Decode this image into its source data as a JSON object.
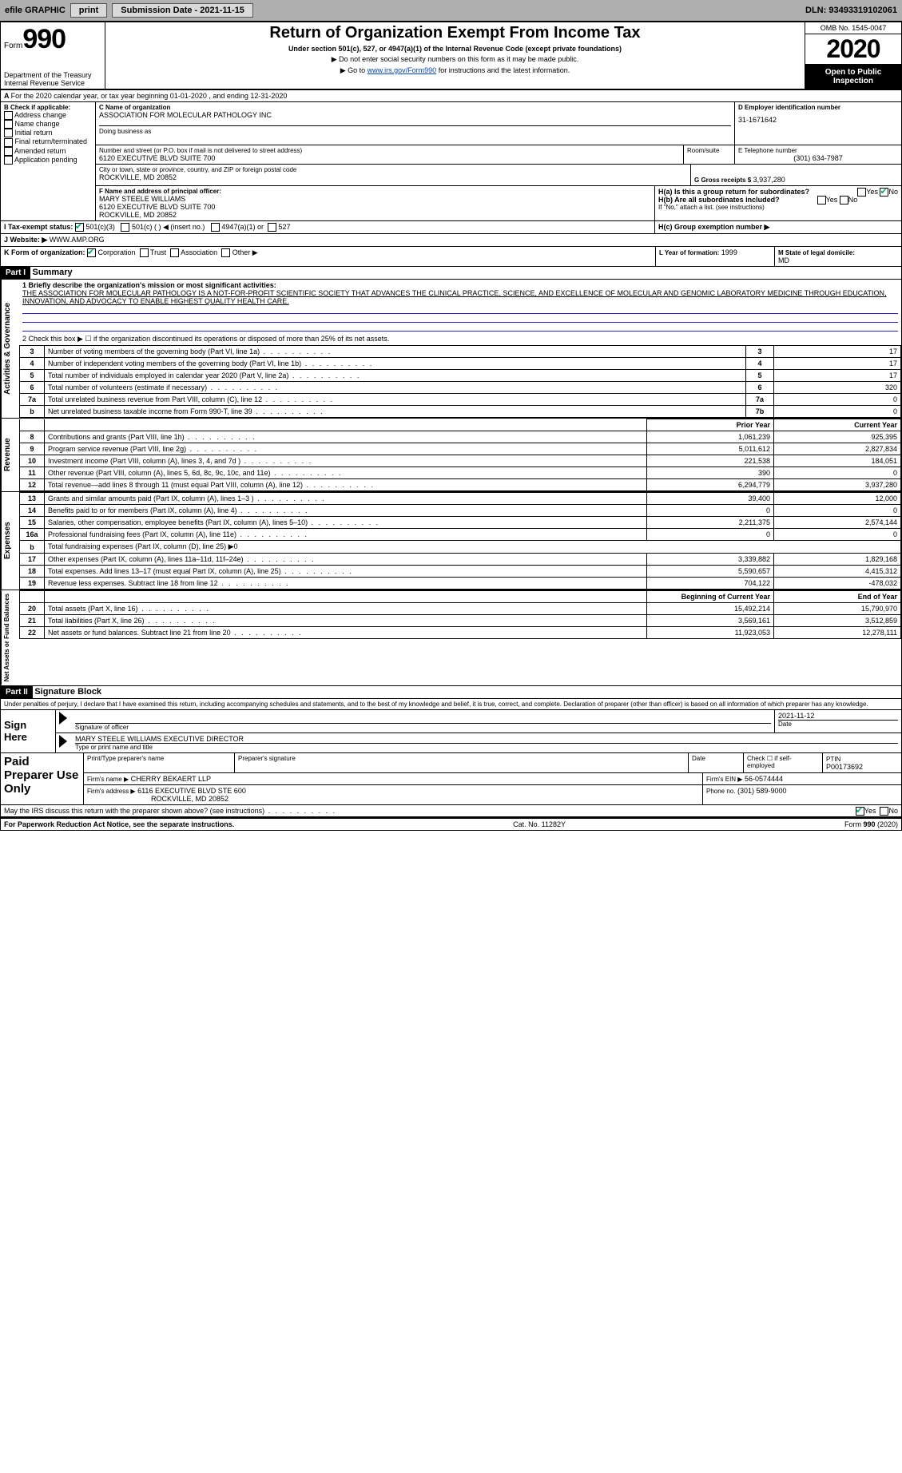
{
  "topbar": {
    "efile": "efile GRAPHIC",
    "print": "print",
    "sub_lbl": "Submission Date - 2021-11-15",
    "dln": "DLN: 93493319102061"
  },
  "header": {
    "form_word": "Form",
    "form_no": "990",
    "dept": "Department of the Treasury\nInternal Revenue Service",
    "title": "Return of Organization Exempt From Income Tax",
    "sub1": "Under section 501(c), 527, or 4947(a)(1) of the Internal Revenue Code (except private foundations)",
    "sub2": "▶ Do not enter social security numbers on this form as it may be made public.",
    "sub3_pre": "▶ Go to ",
    "sub3_link": "www.irs.gov/Form990",
    "sub3_post": " for instructions and the latest information.",
    "omb": "OMB No. 1545-0047",
    "year": "2020",
    "inspect": "Open to Public Inspection"
  },
  "A": {
    "text": "For the 2020 calendar year, or tax year beginning 01-01-2020    , and ending 12-31-2020"
  },
  "B": {
    "label": "B Check if applicable:",
    "items": [
      "Address change",
      "Name change",
      "Initial return",
      "Final return/terminated",
      "Amended return",
      "Application pending"
    ]
  },
  "C": {
    "name_lbl": "C Name of organization",
    "name": "ASSOCIATION FOR MOLECULAR PATHOLOGY INC",
    "dba_lbl": "Doing business as",
    "addr_lbl": "Number and street (or P.O. box if mail is not delivered to street address)",
    "room_lbl": "Room/suite",
    "addr": "6120 EXECUTIVE BLVD SUITE 700",
    "city_lbl": "City or town, state or province, country, and ZIP or foreign postal code",
    "city": "ROCKVILLE, MD  20852"
  },
  "D": {
    "lbl": "D Employer identification number",
    "val": "31-1671642"
  },
  "E": {
    "lbl": "E Telephone number",
    "val": "(301) 634-7987"
  },
  "G": {
    "lbl": "G Gross receipts $",
    "val": "3,937,280"
  },
  "F": {
    "lbl": "F  Name and address of principal officer:",
    "name": "MARY STEELE WILLIAMS",
    "addr1": "6120 EXECUTIVE BLVD SUITE 700",
    "addr2": "ROCKVILLE, MD  20852"
  },
  "H": {
    "a": "H(a)  Is this a group return for subordinates?",
    "b": "H(b)  Are all subordinates included?",
    "bnote": "If \"No,\" attach a list. (see instructions)",
    "c": "H(c)  Group exemption number ▶",
    "yes": "Yes",
    "no": "No"
  },
  "I": {
    "lbl": "I   Tax-exempt status:",
    "o1": "501(c)(3)",
    "o2": "501(c) (  ) ◀ (insert no.)",
    "o3": "4947(a)(1) or",
    "o4": "527"
  },
  "J": {
    "lbl": "J   Website: ▶",
    "val": "WWW.AMP.ORG"
  },
  "K": {
    "lbl": "K Form of organization:",
    "o1": "Corporation",
    "o2": "Trust",
    "o3": "Association",
    "o4": "Other ▶"
  },
  "L": {
    "lbl": "L Year of formation:",
    "val": "1999"
  },
  "M": {
    "lbl": "M State of legal domicile:",
    "val": "MD"
  },
  "part1": {
    "tag": "Part I",
    "title": "Summary",
    "q1": "1  Briefly describe the organization's mission or most significant activities:",
    "mission": "THE ASSOCIATION FOR MOLECULAR PATHOLOGY IS A NOT-FOR-PROFIT SCIENTIFIC SOCIETY THAT ADVANCES THE CLINICAL PRACTICE, SCIENCE, AND EXCELLENCE OF MOLECULAR AND GENOMIC LABORATORY MEDICINE THROUGH EDUCATION, INNOVATION, AND ADVOCACY TO ENABLE HIGHEST QUALITY HEALTH CARE.",
    "q2": "2   Check this box ▶ ☐ if the organization discontinued its operations or disposed of more than 25% of its net assets.",
    "lines": [
      {
        "n": "3",
        "d": "Number of voting members of the governing body (Part VI, line 1a)",
        "box": "3",
        "v": "17"
      },
      {
        "n": "4",
        "d": "Number of independent voting members of the governing body (Part VI, line 1b)",
        "box": "4",
        "v": "17"
      },
      {
        "n": "5",
        "d": "Total number of individuals employed in calendar year 2020 (Part V, line 2a)",
        "box": "5",
        "v": "17"
      },
      {
        "n": "6",
        "d": "Total number of volunteers (estimate if necessary)",
        "box": "6",
        "v": "320"
      },
      {
        "n": "7a",
        "d": "Total unrelated business revenue from Part VIII, column (C), line 12",
        "box": "7a",
        "v": "0"
      },
      {
        "n": "b",
        "d": "Net unrelated business taxable income from Form 990-T, line 39",
        "box": "7b",
        "v": "0"
      }
    ],
    "col_prior": "Prior Year",
    "col_curr": "Current Year",
    "rev": [
      {
        "n": "8",
        "d": "Contributions and grants (Part VIII, line 1h)",
        "p": "1,061,239",
        "c": "925,395"
      },
      {
        "n": "9",
        "d": "Program service revenue (Part VIII, line 2g)",
        "p": "5,011,612",
        "c": "2,827,834"
      },
      {
        "n": "10",
        "d": "Investment income (Part VIII, column (A), lines 3, 4, and 7d )",
        "p": "221,538",
        "c": "184,051"
      },
      {
        "n": "11",
        "d": "Other revenue (Part VIII, column (A), lines 5, 6d, 8c, 9c, 10c, and 11e)",
        "p": "390",
        "c": "0"
      },
      {
        "n": "12",
        "d": "Total revenue—add lines 8 through 11 (must equal Part VIII, column (A), line 12)",
        "p": "6,294,779",
        "c": "3,937,280"
      }
    ],
    "exp": [
      {
        "n": "13",
        "d": "Grants and similar amounts paid (Part IX, column (A), lines 1–3 )",
        "p": "39,400",
        "c": "12,000"
      },
      {
        "n": "14",
        "d": "Benefits paid to or for members (Part IX, column (A), line 4)",
        "p": "0",
        "c": "0"
      },
      {
        "n": "15",
        "d": "Salaries, other compensation, employee benefits (Part IX, column (A), lines 5–10)",
        "p": "2,211,375",
        "c": "2,574,144"
      },
      {
        "n": "16a",
        "d": "Professional fundraising fees (Part IX, column (A), line 11e)",
        "p": "0",
        "c": "0"
      },
      {
        "n": "b",
        "d": "Total fundraising expenses (Part IX, column (D), line 25) ▶0",
        "p": "",
        "c": ""
      },
      {
        "n": "17",
        "d": "Other expenses (Part IX, column (A), lines 11a–11d, 11f–24e)",
        "p": "3,339,882",
        "c": "1,829,168"
      },
      {
        "n": "18",
        "d": "Total expenses. Add lines 13–17 (must equal Part IX, column (A), line 25)",
        "p": "5,590,657",
        "c": "4,415,312"
      },
      {
        "n": "19",
        "d": "Revenue less expenses. Subtract line 18 from line 12",
        "p": "704,122",
        "c": "-478,032"
      }
    ],
    "col_beg": "Beginning of Current Year",
    "col_end": "End of Year",
    "net": [
      {
        "n": "20",
        "d": "Total assets (Part X, line 16)",
        "p": "15,492,214",
        "c": "15,790,970"
      },
      {
        "n": "21",
        "d": "Total liabilities (Part X, line 26)",
        "p": "3,569,161",
        "c": "3,512,859"
      },
      {
        "n": "22",
        "d": "Net assets or fund balances. Subtract line 21 from line 20",
        "p": "11,923,053",
        "c": "12,278,111"
      }
    ],
    "side_ag": "Activities & Governance",
    "side_rev": "Revenue",
    "side_exp": "Expenses",
    "side_net": "Net Assets or Fund Balances"
  },
  "part2": {
    "tag": "Part II",
    "title": "Signature Block",
    "decl": "Under penalties of perjury, I declare that I have examined this return, including accompanying schedules and statements, and to the best of my knowledge and belief, it is true, correct, and complete. Declaration of preparer (other than officer) is based on all information of which preparer has any knowledge.",
    "sign_here": "Sign Here",
    "sig_officer": "Signature of officer",
    "sig_date": "2021-11-12",
    "date_lbl": "Date",
    "name_title": "MARY STEELE WILLIAMS  EXECUTIVE DIRECTOR",
    "nt_lbl": "Type or print name and title",
    "paid": "Paid Preparer Use Only",
    "p_name_lbl": "Print/Type preparer's name",
    "p_sig_lbl": "Preparer's signature",
    "p_date_lbl": "Date",
    "p_check_lbl": "Check ☐ if self-employed",
    "ptin_lbl": "PTIN",
    "ptin": "P00173692",
    "firm_name_lbl": "Firm's name   ▶",
    "firm_name": "CHERRY BEKAERT LLP",
    "firm_ein_lbl": "Firm's EIN ▶",
    "firm_ein": "56-0574444",
    "firm_addr_lbl": "Firm's address ▶",
    "firm_addr": "6116 EXECUTIVE BLVD STE 600",
    "firm_city": "ROCKVILLE, MD  20852",
    "phone_lbl": "Phone no.",
    "phone": "(301) 589-9000",
    "discuss": "May the IRS discuss this return with the preparer shown above? (see instructions)"
  },
  "footer": {
    "pra": "For Paperwork Reduction Act Notice, see the separate instructions.",
    "cat": "Cat. No. 11282Y",
    "form": "Form 990 (2020)"
  },
  "colors": {
    "topbar_bg": "#b0b0b0",
    "link": "#0645ad",
    "check": "#0a6"
  }
}
